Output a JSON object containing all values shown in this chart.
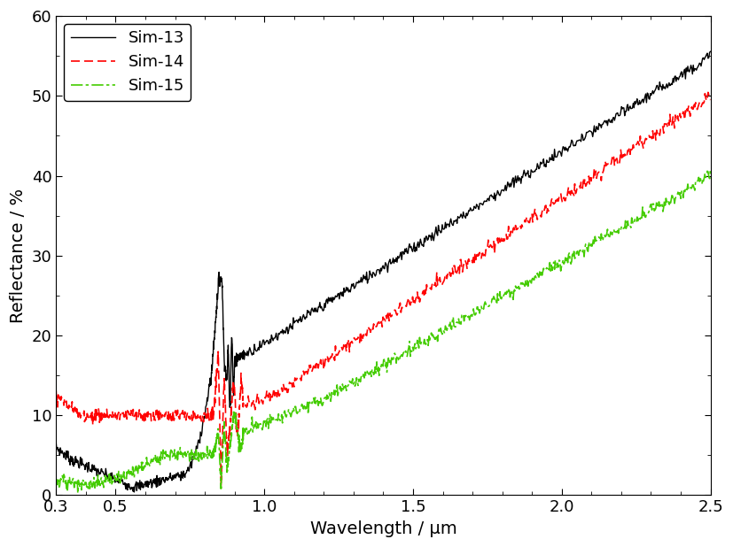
{
  "title": "",
  "xlabel": "Wavelength / μm",
  "ylabel": "Reflectance / %",
  "xlim": [
    0.3,
    2.5
  ],
  "ylim": [
    0,
    60
  ],
  "xticks": [
    0.3,
    0.5,
    1.0,
    1.5,
    2.0,
    2.5
  ],
  "yticks": [
    0,
    10,
    20,
    30,
    40,
    50,
    60
  ],
  "legend": [
    {
      "label": "Sim-13",
      "color": "#000000",
      "linestyle": "solid",
      "linewidth": 1.0
    },
    {
      "label": "Sim-14",
      "color": "#ff0000",
      "linestyle": "dashed",
      "linewidth": 1.2
    },
    {
      "label": "Sim-15",
      "color": "#44cc00",
      "linestyle": "dashdot",
      "linewidth": 1.2
    }
  ],
  "background_color": "#ffffff",
  "font_size": 14
}
